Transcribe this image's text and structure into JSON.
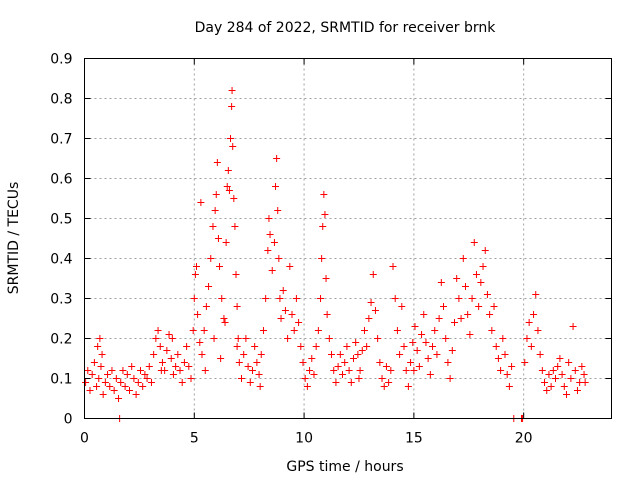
{
  "chart_data": {
    "type": "scatter",
    "title": "Day 284 of 2022, SRMTID for receiver brnk",
    "xlabel": "GPS time / hours",
    "ylabel": "SRMTID / TECUs",
    "xlim": [
      0,
      24
    ],
    "ylim": [
      0,
      0.9
    ],
    "xticks": [
      0,
      5,
      10,
      15,
      20
    ],
    "xtick_labels": [
      "0",
      "5",
      "10",
      "15",
      "20"
    ],
    "yticks": [
      0,
      0.1,
      0.2,
      0.3,
      0.4,
      0.5,
      0.6,
      0.7,
      0.8,
      0.9
    ],
    "ytick_labels": [
      "0",
      "0.1",
      "0.2",
      "0.3",
      "0.4",
      "0.5",
      "0.6",
      "0.7",
      "0.8",
      "0.9"
    ],
    "grid": true,
    "marker": "+",
    "series": [
      {
        "name": "SRMTID",
        "color": "#ff0000",
        "points": [
          [
            0.05,
            0.09
          ],
          [
            0.15,
            0.12
          ],
          [
            0.25,
            0.07
          ],
          [
            0.35,
            0.11
          ],
          [
            0.45,
            0.14
          ],
          [
            0.55,
            0.08
          ],
          [
            0.65,
            0.1
          ],
          [
            0.75,
            0.13
          ],
          [
            0.85,
            0.06
          ],
          [
            0.95,
            0.09
          ],
          [
            0.6,
            0.18
          ],
          [
            0.7,
            0.2
          ],
          [
            0.8,
            0.16
          ],
          [
            1.05,
            0.11
          ],
          [
            1.15,
            0.08
          ],
          [
            1.25,
            0.12
          ],
          [
            1.35,
            0.07
          ],
          [
            1.45,
            0.1
          ],
          [
            1.55,
            0.05
          ],
          [
            1.65,
            0.09
          ],
          [
            1.75,
            0.12
          ],
          [
            1.85,
            0.08
          ],
          [
            1.95,
            0.11
          ],
          [
            2.05,
            0.07
          ],
          [
            2.15,
            0.13
          ],
          [
            2.25,
            0.1
          ],
          [
            2.35,
            0.06
          ],
          [
            2.45,
            0.09
          ],
          [
            2.55,
            0.12
          ],
          [
            2.65,
            0.08
          ],
          [
            2.75,
            0.11
          ],
          [
            2.85,
            0.1
          ],
          [
            2.95,
            0.13
          ],
          [
            3.05,
            0.09
          ],
          [
            3.15,
            0.16
          ],
          [
            3.25,
            0.2
          ],
          [
            3.35,
            0.22
          ],
          [
            3.45,
            0.18
          ],
          [
            3.55,
            0.14
          ],
          [
            3.65,
            0.12
          ],
          [
            3.75,
            0.17
          ],
          [
            3.85,
            0.21
          ],
          [
            3.95,
            0.15
          ],
          [
            4.05,
            0.11
          ],
          [
            4.15,
            0.13
          ],
          [
            4.25,
            0.16
          ],
          [
            4.35,
            0.12
          ],
          [
            4.45,
            0.09
          ],
          [
            4.55,
            0.14
          ],
          [
            4.65,
            0.18
          ],
          [
            4.75,
            0.13
          ],
          [
            4.85,
            0.1
          ],
          [
            4.95,
            0.22
          ],
          [
            5.0,
            0.3
          ],
          [
            5.05,
            0.36
          ],
          [
            5.1,
            0.38
          ],
          [
            5.15,
            0.26
          ],
          [
            5.25,
            0.19
          ],
          [
            5.35,
            0.16
          ],
          [
            5.45,
            0.22
          ],
          [
            5.55,
            0.28
          ],
          [
            5.65,
            0.33
          ],
          [
            5.75,
            0.4
          ],
          [
            5.85,
            0.48
          ],
          [
            5.95,
            0.52
          ],
          [
            6.0,
            0.56
          ],
          [
            6.05,
            0.64
          ],
          [
            6.1,
            0.45
          ],
          [
            6.15,
            0.38
          ],
          [
            6.25,
            0.3
          ],
          [
            6.35,
            0.25
          ],
          [
            6.45,
            0.44
          ],
          [
            6.5,
            0.58
          ],
          [
            6.55,
            0.62
          ],
          [
            6.6,
            0.57
          ],
          [
            6.65,
            0.7
          ],
          [
            6.7,
            0.78
          ],
          [
            6.72,
            0.82
          ],
          [
            6.75,
            0.68
          ],
          [
            6.8,
            0.55
          ],
          [
            6.85,
            0.48
          ],
          [
            6.9,
            0.36
          ],
          [
            6.95,
            0.28
          ],
          [
            5.3,
            0.54
          ],
          [
            5.5,
            0.12
          ],
          [
            5.9,
            0.2
          ],
          [
            6.2,
            0.15
          ],
          [
            6.4,
            0.24
          ],
          [
            6.95,
            0.18
          ],
          [
            7.05,
            0.14
          ],
          [
            7.15,
            0.1
          ],
          [
            7.25,
            0.16
          ],
          [
            7.35,
            0.2
          ],
          [
            7.45,
            0.13
          ],
          [
            7.55,
            0.09
          ],
          [
            7.65,
            0.12
          ],
          [
            7.75,
            0.18
          ],
          [
            7.85,
            0.14
          ],
          [
            7.95,
            0.11
          ],
          [
            8.05,
            0.16
          ],
          [
            8.15,
            0.22
          ],
          [
            8.25,
            0.3
          ],
          [
            8.35,
            0.42
          ],
          [
            8.4,
            0.5
          ],
          [
            8.45,
            0.46
          ],
          [
            8.55,
            0.37
          ],
          [
            8.65,
            0.44
          ],
          [
            8.7,
            0.58
          ],
          [
            8.75,
            0.65
          ],
          [
            8.8,
            0.52
          ],
          [
            8.85,
            0.4
          ],
          [
            8.9,
            0.3
          ],
          [
            8.95,
            0.25
          ],
          [
            9.05,
            0.32
          ],
          [
            9.15,
            0.27
          ],
          [
            9.25,
            0.2
          ],
          [
            9.35,
            0.38
          ],
          [
            9.45,
            0.26
          ],
          [
            9.55,
            0.22
          ],
          [
            9.65,
            0.3
          ],
          [
            9.75,
            0.24
          ],
          [
            9.85,
            0.18
          ],
          [
            9.95,
            0.14
          ],
          [
            10.05,
            0.1
          ],
          [
            10.15,
            0.08
          ],
          [
            10.25,
            0.12
          ],
          [
            10.35,
            0.15
          ],
          [
            10.45,
            0.11
          ],
          [
            10.55,
            0.18
          ],
          [
            10.65,
            0.22
          ],
          [
            10.75,
            0.3
          ],
          [
            10.8,
            0.4
          ],
          [
            10.85,
            0.48
          ],
          [
            10.9,
            0.56
          ],
          [
            10.95,
            0.51
          ],
          [
            11.0,
            0.35
          ],
          [
            11.05,
            0.26
          ],
          [
            11.15,
            0.2
          ],
          [
            11.25,
            0.16
          ],
          [
            11.35,
            0.12
          ],
          [
            11.45,
            0.09
          ],
          [
            11.55,
            0.13
          ],
          [
            11.65,
            0.16
          ],
          [
            11.75,
            0.11
          ],
          [
            11.85,
            0.14
          ],
          [
            11.95,
            0.18
          ],
          [
            12.05,
            0.12
          ],
          [
            12.15,
            0.09
          ],
          [
            12.25,
            0.15
          ],
          [
            12.35,
            0.19
          ],
          [
            12.45,
            0.16
          ],
          [
            12.55,
            0.12
          ],
          [
            12.65,
            0.17
          ],
          [
            12.75,
            0.22
          ],
          [
            12.85,
            0.18
          ],
          [
            12.95,
            0.25
          ],
          [
            13.05,
            0.29
          ],
          [
            13.15,
            0.36
          ],
          [
            13.25,
            0.27
          ],
          [
            13.35,
            0.2
          ],
          [
            13.45,
            0.14
          ],
          [
            13.55,
            0.1
          ],
          [
            13.65,
            0.08
          ],
          [
            13.75,
            0.13
          ],
          [
            13.85,
            0.09
          ],
          [
            13.95,
            0.12
          ],
          [
            14.05,
            0.38
          ],
          [
            14.15,
            0.3
          ],
          [
            14.25,
            0.22
          ],
          [
            14.35,
            0.16
          ],
          [
            14.45,
            0.28
          ],
          [
            14.55,
            0.18
          ],
          [
            14.65,
            0.12
          ],
          [
            14.75,
            0.08
          ],
          [
            14.85,
            0.14
          ],
          [
            14.95,
            0.19
          ],
          [
            15.05,
            0.23
          ],
          [
            15.15,
            0.17
          ],
          [
            15.25,
            0.13
          ],
          [
            15.35,
            0.21
          ],
          [
            15.45,
            0.26
          ],
          [
            15.55,
            0.19
          ],
          [
            15.65,
            0.15
          ],
          [
            15.75,
            0.11
          ],
          [
            15.85,
            0.18
          ],
          [
            15.95,
            0.22
          ],
          [
            16.05,
            0.16
          ],
          [
            16.15,
            0.25
          ],
          [
            16.25,
            0.34
          ],
          [
            16.35,
            0.28
          ],
          [
            16.45,
            0.2
          ],
          [
            16.55,
            0.14
          ],
          [
            16.65,
            0.1
          ],
          [
            16.75,
            0.17
          ],
          [
            16.85,
            0.24
          ],
          [
            16.95,
            0.35
          ],
          [
            17.05,
            0.3
          ],
          [
            17.15,
            0.25
          ],
          [
            17.25,
            0.4
          ],
          [
            17.35,
            0.33
          ],
          [
            17.45,
            0.26
          ],
          [
            17.55,
            0.21
          ],
          [
            17.65,
            0.3
          ],
          [
            17.75,
            0.44
          ],
          [
            17.85,
            0.36
          ],
          [
            17.95,
            0.28
          ],
          [
            18.05,
            0.34
          ],
          [
            18.15,
            0.38
          ],
          [
            18.25,
            0.42
          ],
          [
            18.35,
            0.31
          ],
          [
            18.45,
            0.26
          ],
          [
            18.55,
            0.22
          ],
          [
            18.65,
            0.28
          ],
          [
            18.75,
            0.18
          ],
          [
            18.85,
            0.15
          ],
          [
            18.95,
            0.12
          ],
          [
            19.05,
            0.2
          ],
          [
            19.15,
            0.16
          ],
          [
            19.25,
            0.11
          ],
          [
            19.35,
            0.08
          ],
          [
            19.45,
            0.13
          ],
          [
            19.55,
            0.0
          ],
          [
            19.9,
            0.0
          ],
          [
            19.95,
            0.0
          ],
          [
            20.05,
            0.14
          ],
          [
            20.15,
            0.2
          ],
          [
            20.25,
            0.24
          ],
          [
            20.35,
            0.18
          ],
          [
            20.45,
            0.26
          ],
          [
            20.55,
            0.31
          ],
          [
            20.65,
            0.22
          ],
          [
            20.75,
            0.16
          ],
          [
            20.85,
            0.12
          ],
          [
            20.95,
            0.09
          ],
          [
            21.05,
            0.07
          ],
          [
            21.15,
            0.11
          ],
          [
            21.25,
            0.08
          ],
          [
            21.35,
            0.12
          ],
          [
            21.45,
            0.1
          ],
          [
            21.55,
            0.13
          ],
          [
            21.65,
            0.15
          ],
          [
            21.75,
            0.11
          ],
          [
            21.85,
            0.08
          ],
          [
            21.95,
            0.06
          ],
          [
            22.05,
            0.14
          ],
          [
            22.15,
            0.1
          ],
          [
            22.25,
            0.23
          ],
          [
            22.35,
            0.12
          ],
          [
            22.45,
            0.07
          ],
          [
            22.55,
            0.09
          ],
          [
            22.65,
            0.13
          ],
          [
            22.75,
            0.11
          ],
          [
            22.8,
            0.09
          ],
          [
            1.6,
            0.0
          ],
          [
            3.5,
            0.12
          ],
          [
            4.0,
            0.2
          ],
          [
            7.0,
            0.2
          ],
          [
            8.0,
            0.08
          ],
          [
            12.5,
            0.1
          ],
          [
            15.0,
            0.12
          ]
        ]
      }
    ]
  }
}
